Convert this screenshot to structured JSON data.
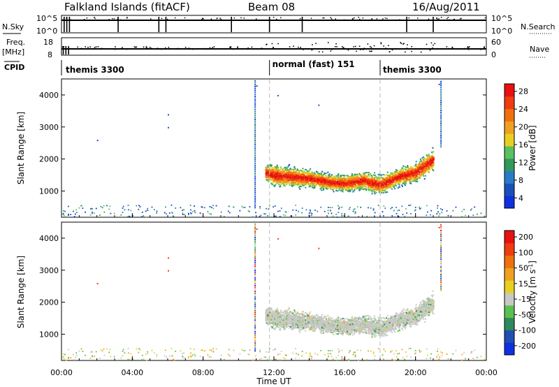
{
  "header": {
    "station": "Falkland Islands (fitACF)",
    "beam": "Beam 08",
    "date": "16/Aug/2011"
  },
  "side_labels": {
    "nsky": "N.Sky",
    "freq_top": "Freq.",
    "freq_unit": "[MHz]",
    "cpid": "CPID",
    "nsearch": "N.Search",
    "nave": "Nave"
  },
  "noise_panel": {
    "left_ticks": [
      "10^5",
      "10^0"
    ],
    "right_ticks": [
      "10^5",
      "10^0"
    ]
  },
  "freq_panel": {
    "left_ticks": [
      "18",
      "8"
    ],
    "right_ticks": [
      "60",
      "0"
    ]
  },
  "cpid_segments": [
    {
      "label": "themis 3300",
      "start_hour": 0
    },
    {
      "label": "normal (fast) 151",
      "start_hour": 11.75
    },
    {
      "label": "themis 3300",
      "start_hour": 18.0
    }
  ],
  "colors": {
    "power_scale": [
      "#1030e0",
      "#1a50b8",
      "#2a7ac8",
      "#2f9a5a",
      "#5cc060",
      "#e8d020",
      "#f0a020",
      "#f07010",
      "#f03c10",
      "#e81010"
    ],
    "velocity_scale": [
      "#1030e0",
      "#2050b0",
      "#2e8a5e",
      "#5ac050",
      "#c8c8c4",
      "#e8d020",
      "#f0a020",
      "#f07010",
      "#f03c10",
      "#e81010"
    ],
    "ground_scatter": "#c8c8c4"
  },
  "chart_data": [
    {
      "type": "heatmap",
      "ylabel": "Slant Range [km]",
      "y_ticks": [
        1000,
        2000,
        3000,
        4000
      ],
      "ylim": [
        180,
        4500
      ],
      "xlim": [
        0,
        24
      ],
      "colorbar": {
        "label": "Power [dB]",
        "ticks": [
          "4",
          "8",
          "12",
          "16",
          "20",
          "24",
          "28"
        ],
        "range": [
          0,
          30
        ]
      },
      "band": {
        "hours": [
          11.5,
          12,
          13,
          14,
          15,
          16,
          17,
          18,
          19,
          20,
          21
        ],
        "center_km": [
          1600,
          1500,
          1450,
          1400,
          1300,
          1250,
          1350,
          1200,
          1450,
          1600,
          2000
        ],
        "width_km": [
          700,
          900,
          800,
          700,
          700,
          650,
          750,
          800,
          700,
          800,
          900
        ]
      }
    },
    {
      "type": "heatmap",
      "ylabel": "Slant Range [km]",
      "xlabel": "Time UT",
      "y_ticks": [
        1000,
        2000,
        3000,
        4000
      ],
      "ylim": [
        180,
        4500
      ],
      "xlim": [
        0,
        24
      ],
      "x_ticks": [
        "00:00",
        "04:00",
        "08:00",
        "12:00",
        "16:00",
        "20:00",
        "00:00"
      ],
      "colorbar": {
        "label": "Velocity [m s-1]",
        "ticks": [
          "200",
          "100",
          "50",
          "15",
          "-15",
          "-50",
          "-100",
          "-200"
        ],
        "range": [
          -250,
          250
        ]
      }
    }
  ]
}
